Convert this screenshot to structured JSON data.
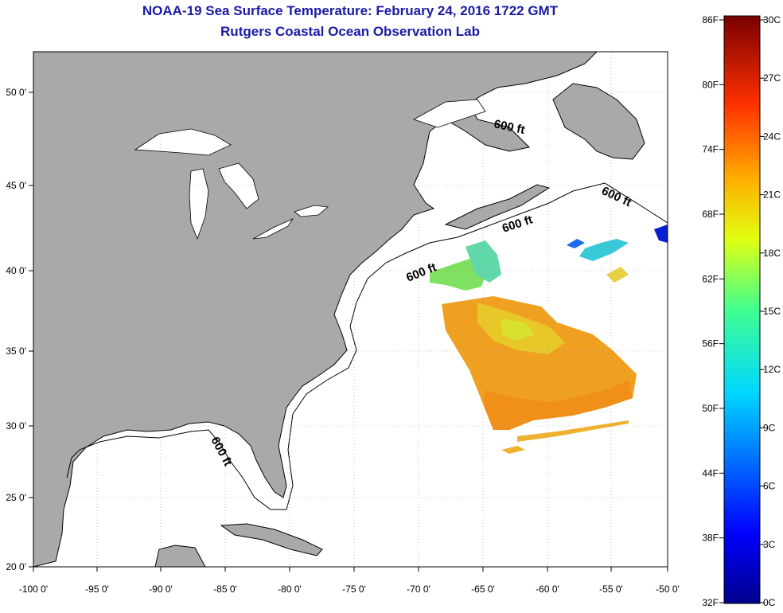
{
  "header": {
    "title": "NOAA-19 Sea Surface Temperature:  February 24, 2016 1722 GMT",
    "subtitle": "Rutgers Coastal Ocean Observation Lab"
  },
  "map": {
    "lon_ticks": [
      "-100 0'",
      "-95 0'",
      "-90 0'",
      "-85 0'",
      "-80 0'",
      "-75 0'",
      "-70 0'",
      "-65 0'",
      "-60 0'",
      "-55 0'",
      "-50 0'"
    ],
    "lat_ticks": [
      "50 0'",
      "45 0'",
      "40 0'",
      "35 0'",
      "30 0'",
      "25 0'",
      "20 0'"
    ],
    "depth_labels": [
      "600 ft",
      "600 ft",
      "600 ft",
      "600 ft",
      "600 ft"
    ],
    "colors": {
      "land": "#a9a9a9",
      "ocean": "#ffffff",
      "coast": "#000000"
    }
  },
  "colorbar": {
    "fahrenheit": [
      "86F",
      "80F",
      "74F",
      "68F",
      "62F",
      "56F",
      "50F",
      "44F",
      "38F",
      "32F"
    ],
    "celsius": [
      "30C",
      "27C",
      "24C",
      "21C",
      "18C",
      "15C",
      "12C",
      "9C",
      "6C",
      "3C",
      "0C"
    ]
  }
}
